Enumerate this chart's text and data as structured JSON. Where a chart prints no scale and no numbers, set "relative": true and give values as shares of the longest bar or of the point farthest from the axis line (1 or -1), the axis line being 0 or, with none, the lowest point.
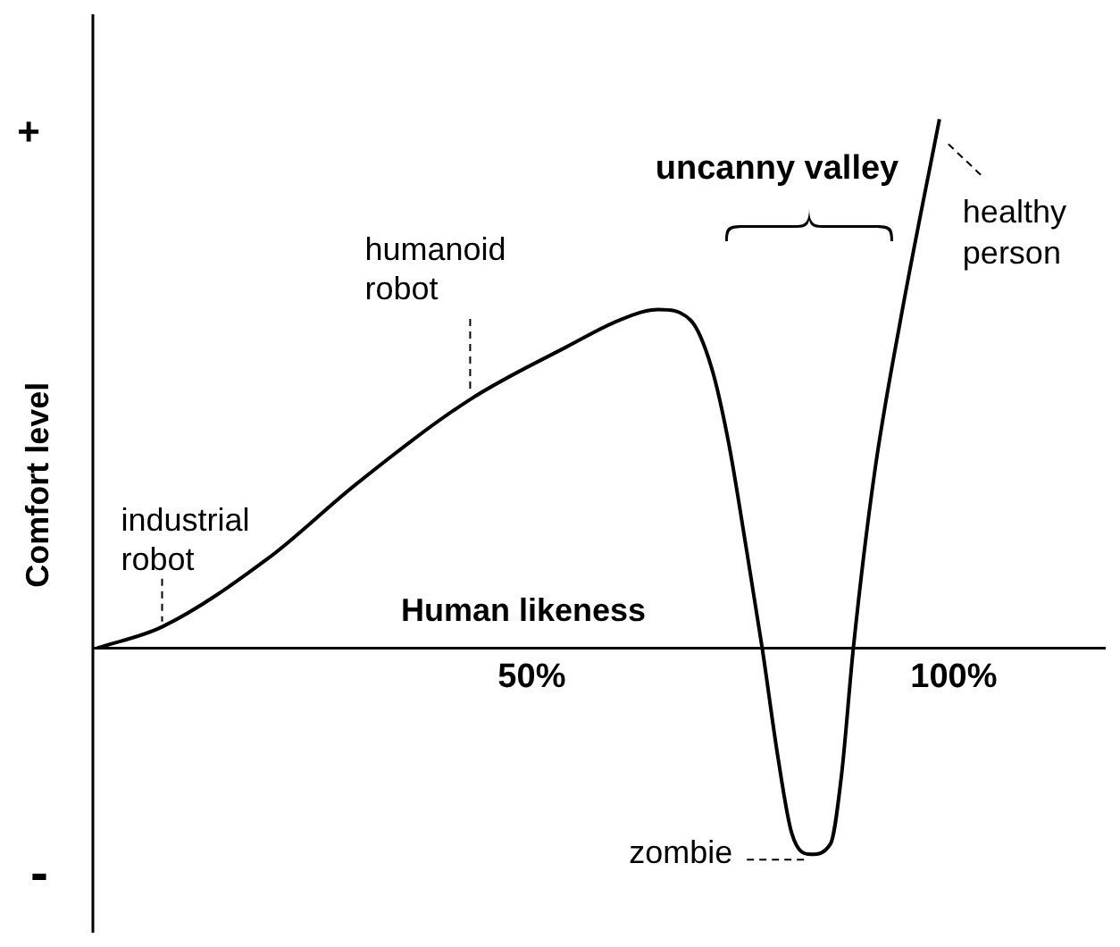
{
  "chart_data": {
    "type": "line",
    "relative": true,
    "xlabel": "Human likeness",
    "ylabel": "Comfort level",
    "x": [
      -1.5,
      6.2,
      18.8,
      29.2,
      42.7,
      54.2,
      60.4,
      65,
      68.8,
      71.3,
      73.3,
      75.4,
      77.3,
      79.2,
      80.8,
      83.1,
      85.4,
      86.7,
      88.1,
      90.6,
      93.8,
      98.3
    ],
    "series": [
      {
        "color": "#000000",
        "values": [
          0,
          0.04,
          0.17,
          0.31,
          0.47,
          0.57,
          0.62,
          0.64,
          0.62,
          0.53,
          0.39,
          0.19,
          0,
          -0.21,
          -0.35,
          -0.39,
          -0.37,
          -0.24,
          0,
          0.33,
          0.63,
          1
        ]
      }
    ],
    "xlim": [
      -2,
      118
    ],
    "xticks": [
      {
        "value": 50,
        "label": "50%"
      },
      {
        "value": 100,
        "label": "100%"
      }
    ],
    "grid": false,
    "legend": false,
    "marker": "none",
    "line_style": "solid",
    "annotations": [
      "+",
      "-",
      "uncanny valley",
      {
        "text": "industrial robot",
        "x": 6.2,
        "y": 0.04
      },
      {
        "text": "humanoid robot",
        "x": 42.7,
        "y": 0.47
      },
      {
        "text": "zombie",
        "x": 83.1,
        "y": -0.39
      },
      {
        "text": "healthy person",
        "x": 98.3,
        "y": 1
      }
    ]
  }
}
